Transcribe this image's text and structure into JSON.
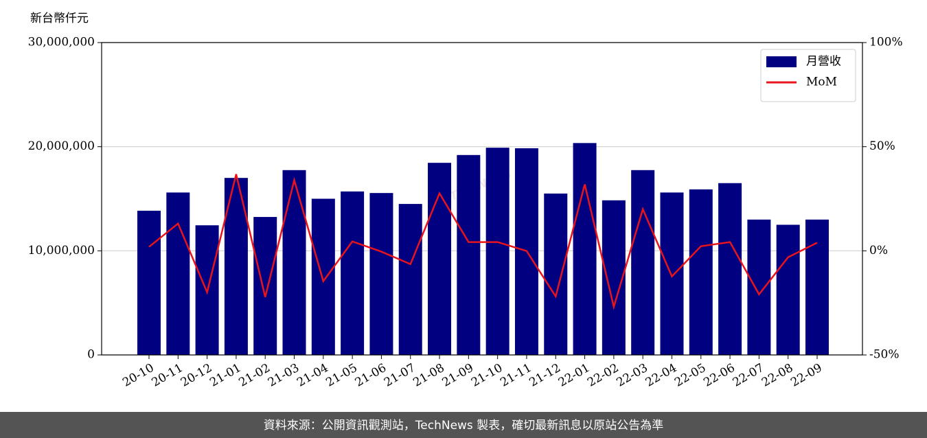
{
  "chart_data": {
    "type": "bar",
    "y_label": "新台幣仟元",
    "watermark": "TechNews",
    "footer": "資料來源：公開資訊觀測站，TechNews 製表，確切最新訊息以原站公告為準",
    "categories": [
      "20-10",
      "20-11",
      "20-12",
      "21-01",
      "21-02",
      "21-03",
      "21-04",
      "21-05",
      "21-06",
      "21-07",
      "21-08",
      "21-09",
      "21-10",
      "21-11",
      "21-12",
      "22-01",
      "22-02",
      "22-03",
      "22-04",
      "22-05",
      "22-06",
      "22-07",
      "22-08",
      "22-09"
    ],
    "series": [
      {
        "name": "月營收",
        "type": "bar",
        "color": "#000080",
        "values": [
          13850000,
          15600000,
          12450000,
          17000000,
          13250000,
          17750000,
          15000000,
          15700000,
          15550000,
          14500000,
          18450000,
          19200000,
          19900000,
          19850000,
          15500000,
          20350000,
          14850000,
          17750000,
          15600000,
          15900000,
          16500000,
          13000000,
          12500000,
          13000000
        ]
      },
      {
        "name": "MoM",
        "type": "line",
        "axis": "y2",
        "color": "#e8141c",
        "values": [
          1.9,
          13.1,
          -19.9,
          36.8,
          -22.2,
          33.9,
          -14.6,
          4.5,
          -0.4,
          -6.4,
          27.6,
          4.2,
          4.2,
          -0.1,
          -21.9,
          31.9,
          -26.9,
          20.0,
          -12.3,
          2.2,
          4.2,
          -20.9,
          -3.1,
          3.9
        ]
      }
    ],
    "ylim": [
      0,
      30000000
    ],
    "yticks": [
      0,
      {
        "value": 10000000,
        "label": "10,000,000"
      },
      {
        "value": 20000000,
        "label": "20,000,000"
      },
      {
        "value": 30000000,
        "label": "30,000,000"
      }
    ],
    "y2lim": [
      -50,
      100
    ],
    "y2ticks": [
      {
        "value": -50,
        "label": "-50%"
      },
      {
        "value": 0,
        "label": "0%"
      },
      {
        "value": 50,
        "label": "50%"
      },
      {
        "value": 100,
        "label": "100%"
      }
    ],
    "grid": true,
    "legend": "upper right"
  }
}
